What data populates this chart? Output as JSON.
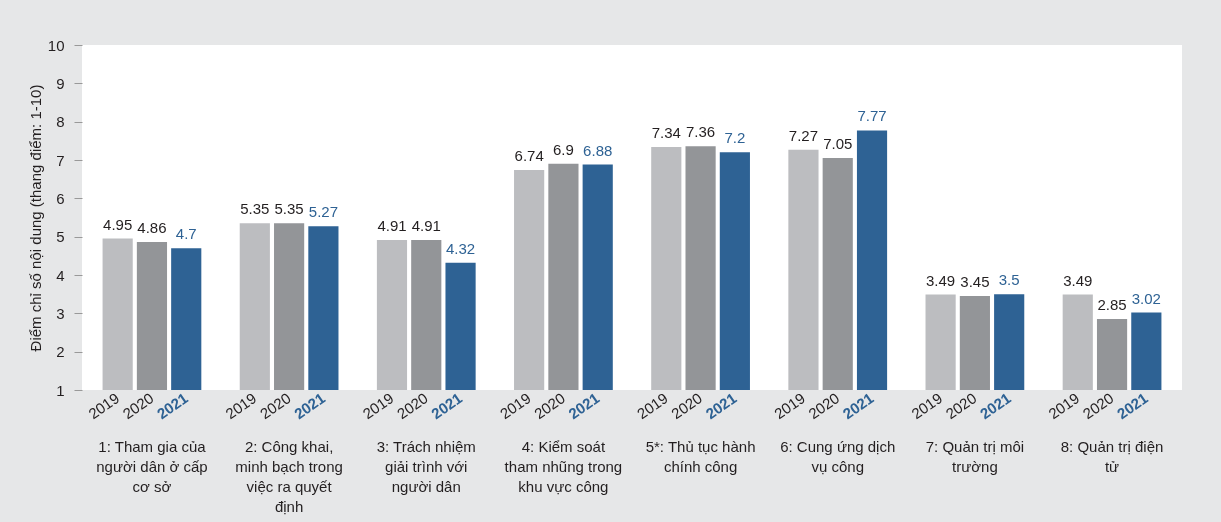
{
  "chart_data": {
    "type": "bar",
    "ylabel": "Điểm chỉ số nội dung (thang điểm: 1-10)",
    "categories": [
      "1: Tham gia của người dân ở cấp cơ sở",
      "2: Công khai, minh bạch trong việc ra quyết định",
      "3: Trách nhiệm giải trình với người dân",
      "4: Kiểm soát tham nhũng trong khu vực công",
      "5*: Thủ tục hành chính công",
      "6: Cung ứng dịch vụ công",
      "7: Quản trị môi trường",
      "8: Quản trị điện tử"
    ],
    "series": [
      {
        "name": "2019",
        "color": "#bcbdc0",
        "values": [
          4.95,
          5.35,
          4.91,
          6.74,
          7.34,
          7.27,
          3.49,
          3.49
        ]
      },
      {
        "name": "2020",
        "color": "#939598",
        "values": [
          4.86,
          5.35,
          4.91,
          6.9,
          7.36,
          7.05,
          3.45,
          2.85
        ]
      },
      {
        "name": "2021",
        "color": "#2e6294",
        "values": [
          4.7,
          5.27,
          4.32,
          6.88,
          7.2,
          7.77,
          3.5,
          3.02
        ]
      }
    ],
    "ylim": [
      1,
      10
    ],
    "yticks": [
      1,
      2,
      3,
      4,
      5,
      6,
      7,
      8,
      9,
      10
    ],
    "data_labels": true,
    "legend": false
  }
}
